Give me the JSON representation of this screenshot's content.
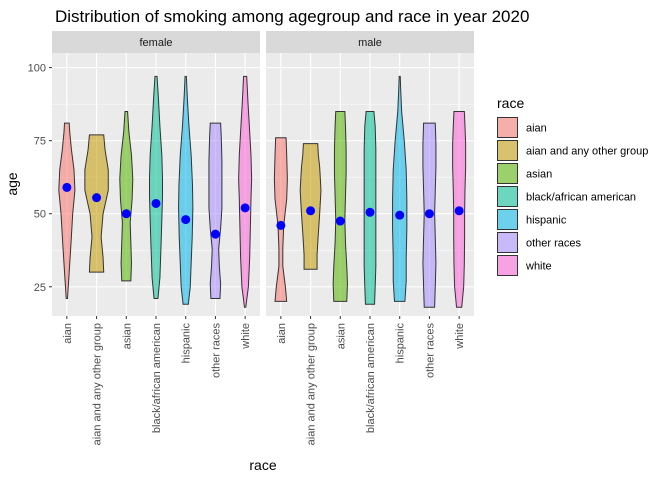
{
  "chart_data": {
    "type": "violin",
    "title": "Distribution of smoking among agegroup and race in year 2020",
    "xlabel": "race",
    "ylabel": "age",
    "ylim": [
      15,
      105
    ],
    "yticks": [
      25,
      50,
      75,
      100
    ],
    "grid": true,
    "legend_position": "right",
    "legend_title": "race",
    "categories": [
      "aian",
      "aian and any other group",
      "asian",
      "black/african american",
      "hispanic",
      "other races",
      "white"
    ],
    "colors": {
      "aian": "#F8766D",
      "aian and any other group": "#C49A00",
      "asian": "#53B400",
      "black/african american": "#00C094",
      "hispanic": "#00B6EB",
      "other races": "#A58AFF",
      "white": "#FB61D7"
    },
    "mean_point_color": "#0000FF",
    "panels": [
      {
        "label": "female",
        "series": [
          {
            "race": "aian",
            "min": 21,
            "max": 81,
            "mean": 59,
            "profile": [
              [
                21,
                0.05
              ],
              [
                30,
                0.18
              ],
              [
                40,
                0.32
              ],
              [
                50,
                0.45
              ],
              [
                58,
                0.62
              ],
              [
                65,
                0.55
              ],
              [
                72,
                0.35
              ],
              [
                78,
                0.22
              ],
              [
                81,
                0.18
              ]
            ]
          },
          {
            "race": "aian and any other group",
            "min": 30,
            "max": 77,
            "mean": 55.5,
            "profile": [
              [
                30,
                0.55
              ],
              [
                35,
                0.5
              ],
              [
                42,
                0.35
              ],
              [
                50,
                0.5
              ],
              [
                58,
                0.9
              ],
              [
                65,
                0.9
              ],
              [
                72,
                0.65
              ],
              [
                77,
                0.55
              ]
            ]
          },
          {
            "race": "asian",
            "min": 27,
            "max": 85,
            "mean": 50,
            "profile": [
              [
                27,
                0.35
              ],
              [
                33,
                0.4
              ],
              [
                40,
                0.35
              ],
              [
                47,
                0.3
              ],
              [
                55,
                0.45
              ],
              [
                62,
                0.5
              ],
              [
                70,
                0.4
              ],
              [
                78,
                0.2
              ],
              [
                85,
                0.1
              ]
            ]
          },
          {
            "race": "black/african american",
            "min": 21,
            "max": 97,
            "mean": 53.5,
            "profile": [
              [
                21,
                0.15
              ],
              [
                28,
                0.3
              ],
              [
                38,
                0.38
              ],
              [
                48,
                0.45
              ],
              [
                56,
                0.5
              ],
              [
                62,
                0.5
              ],
              [
                70,
                0.45
              ],
              [
                80,
                0.3
              ],
              [
                90,
                0.18
              ],
              [
                97,
                0.08
              ]
            ]
          },
          {
            "race": "hispanic",
            "min": 19,
            "max": 97,
            "mean": 48,
            "profile": [
              [
                19,
                0.2
              ],
              [
                25,
                0.35
              ],
              [
                33,
                0.42
              ],
              [
                42,
                0.5
              ],
              [
                52,
                0.55
              ],
              [
                60,
                0.52
              ],
              [
                70,
                0.42
              ],
              [
                80,
                0.25
              ],
              [
                90,
                0.12
              ],
              [
                97,
                0.05
              ]
            ]
          },
          {
            "race": "other races",
            "min": 21,
            "max": 81,
            "mean": 43,
            "profile": [
              [
                21,
                0.35
              ],
              [
                26,
                0.4
              ],
              [
                32,
                0.3
              ],
              [
                38,
                0.25
              ],
              [
                45,
                0.4
              ],
              [
                52,
                0.5
              ],
              [
                60,
                0.5
              ],
              [
                68,
                0.5
              ],
              [
                76,
                0.45
              ],
              [
                81,
                0.4
              ]
            ]
          },
          {
            "race": "white",
            "min": 18,
            "max": 97,
            "mean": 52,
            "profile": [
              [
                18,
                0.05
              ],
              [
                25,
                0.25
              ],
              [
                35,
                0.35
              ],
              [
                45,
                0.4
              ],
              [
                55,
                0.45
              ],
              [
                62,
                0.5
              ],
              [
                70,
                0.45
              ],
              [
                78,
                0.35
              ],
              [
                88,
                0.22
              ],
              [
                97,
                0.12
              ]
            ]
          }
        ]
      },
      {
        "label": "male",
        "series": [
          {
            "race": "aian",
            "min": 20,
            "max": 76,
            "mean": 46,
            "profile": [
              [
                20,
                0.45
              ],
              [
                25,
                0.35
              ],
              [
                32,
                0.15
              ],
              [
                38,
                0.15
              ],
              [
                46,
                0.22
              ],
              [
                55,
                0.45
              ],
              [
                62,
                0.5
              ],
              [
                70,
                0.45
              ],
              [
                76,
                0.4
              ]
            ]
          },
          {
            "race": "aian and any other group",
            "min": 31,
            "max": 74,
            "mean": 51,
            "profile": [
              [
                31,
                0.5
              ],
              [
                36,
                0.5
              ],
              [
                42,
                0.58
              ],
              [
                50,
                0.7
              ],
              [
                58,
                0.8
              ],
              [
                66,
                0.7
              ],
              [
                70,
                0.6
              ],
              [
                74,
                0.55
              ]
            ]
          },
          {
            "race": "asian",
            "min": 20,
            "max": 85,
            "mean": 47.5,
            "profile": [
              [
                20,
                0.5
              ],
              [
                26,
                0.55
              ],
              [
                32,
                0.5
              ],
              [
                40,
                0.4
              ],
              [
                48,
                0.35
              ],
              [
                56,
                0.4
              ],
              [
                64,
                0.45
              ],
              [
                72,
                0.45
              ],
              [
                80,
                0.4
              ],
              [
                85,
                0.35
              ]
            ]
          },
          {
            "race": "black/african american",
            "min": 19,
            "max": 85,
            "mean": 50.5,
            "profile": [
              [
                19,
                0.35
              ],
              [
                25,
                0.4
              ],
              [
                32,
                0.45
              ],
              [
                40,
                0.45
              ],
              [
                48,
                0.45
              ],
              [
                56,
                0.45
              ],
              [
                64,
                0.45
              ],
              [
                72,
                0.45
              ],
              [
                80,
                0.4
              ],
              [
                85,
                0.3
              ]
            ]
          },
          {
            "race": "hispanic",
            "min": 20,
            "max": 97,
            "mean": 49.5,
            "profile": [
              [
                20,
                0.4
              ],
              [
                27,
                0.5
              ],
              [
                35,
                0.5
              ],
              [
                45,
                0.55
              ],
              [
                55,
                0.55
              ],
              [
                65,
                0.5
              ],
              [
                75,
                0.35
              ],
              [
                85,
                0.15
              ],
              [
                92,
                0.08
              ],
              [
                97,
                0.04
              ]
            ]
          },
          {
            "race": "other races",
            "min": 18,
            "max": 81,
            "mean": 50,
            "profile": [
              [
                18,
                0.4
              ],
              [
                25,
                0.45
              ],
              [
                33,
                0.5
              ],
              [
                42,
                0.45
              ],
              [
                50,
                0.4
              ],
              [
                58,
                0.45
              ],
              [
                66,
                0.5
              ],
              [
                74,
                0.5
              ],
              [
                81,
                0.45
              ]
            ]
          },
          {
            "race": "white",
            "min": 18,
            "max": 85,
            "mean": 51,
            "profile": [
              [
                18,
                0.2
              ],
              [
                25,
                0.35
              ],
              [
                33,
                0.4
              ],
              [
                42,
                0.42
              ],
              [
                50,
                0.42
              ],
              [
                58,
                0.45
              ],
              [
                66,
                0.5
              ],
              [
                74,
                0.5
              ],
              [
                80,
                0.45
              ],
              [
                85,
                0.4
              ]
            ]
          }
        ]
      }
    ]
  }
}
